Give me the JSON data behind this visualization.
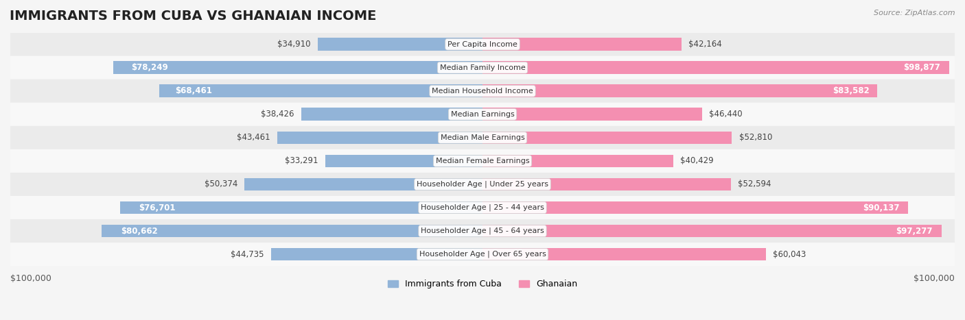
{
  "title": "IMMIGRANTS FROM CUBA VS GHANAIAN INCOME",
  "source": "Source: ZipAtlas.com",
  "categories": [
    "Per Capita Income",
    "Median Family Income",
    "Median Household Income",
    "Median Earnings",
    "Median Male Earnings",
    "Median Female Earnings",
    "Householder Age | Under 25 years",
    "Householder Age | 25 - 44 years",
    "Householder Age | 45 - 64 years",
    "Householder Age | Over 65 years"
  ],
  "cuba_values": [
    34910,
    78249,
    68461,
    38426,
    43461,
    33291,
    50374,
    76701,
    80662,
    44735
  ],
  "ghanaian_values": [
    42164,
    98877,
    83582,
    46440,
    52810,
    40429,
    52594,
    90137,
    97277,
    60043
  ],
  "cuba_labels": [
    "$34,910",
    "$78,249",
    "$68,461",
    "$38,426",
    "$43,461",
    "$33,291",
    "$50,374",
    "$76,701",
    "$80,662",
    "$44,735"
  ],
  "ghanaian_labels": [
    "$42,164",
    "$98,877",
    "$83,582",
    "$46,440",
    "$52,810",
    "$40,429",
    "$52,594",
    "$90,137",
    "$97,277",
    "$60,043"
  ],
  "cuba_color": "#92b4d8",
  "ghanaian_color": "#f48fb1",
  "cuba_color_dark": "#6495c8",
  "ghanaian_color_dark": "#f06090",
  "max_value": 100000,
  "x_label_left": "$100,000",
  "x_label_right": "$100,000",
  "legend_cuba": "Immigrants from Cuba",
  "legend_ghanaian": "Ghanaian",
  "background_color": "#f5f5f5",
  "row_bg_color": "#ffffff",
  "title_fontsize": 14,
  "label_fontsize": 8.5,
  "category_fontsize": 8,
  "bar_height": 0.55
}
